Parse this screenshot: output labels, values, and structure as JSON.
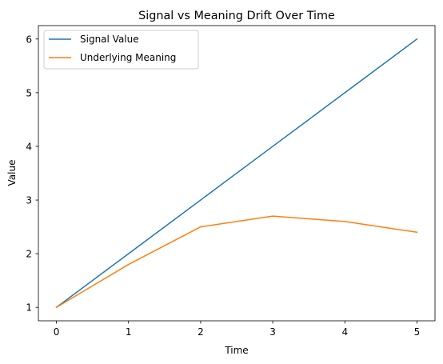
{
  "chart_data": {
    "type": "line",
    "title": "Signal vs Meaning Drift Over Time",
    "xlabel": "Time",
    "ylabel": "Value",
    "x": [
      0,
      1,
      2,
      3,
      4,
      5
    ],
    "xlim": [
      -0.25,
      5.25
    ],
    "ylim": [
      0.75,
      6.25
    ],
    "xticks": [
      0,
      1,
      2,
      3,
      4,
      5
    ],
    "yticks": [
      1,
      2,
      3,
      4,
      5,
      6
    ],
    "grid": false,
    "legend_position": "top-left",
    "series": [
      {
        "name": "Signal Value",
        "color": "#1f77b4",
        "values": [
          1,
          2,
          3,
          4,
          5,
          6
        ]
      },
      {
        "name": "Underlying Meaning",
        "color": "#ff7f0e",
        "values": [
          1,
          1.8,
          2.5,
          2.7,
          2.6,
          2.4
        ]
      }
    ]
  }
}
